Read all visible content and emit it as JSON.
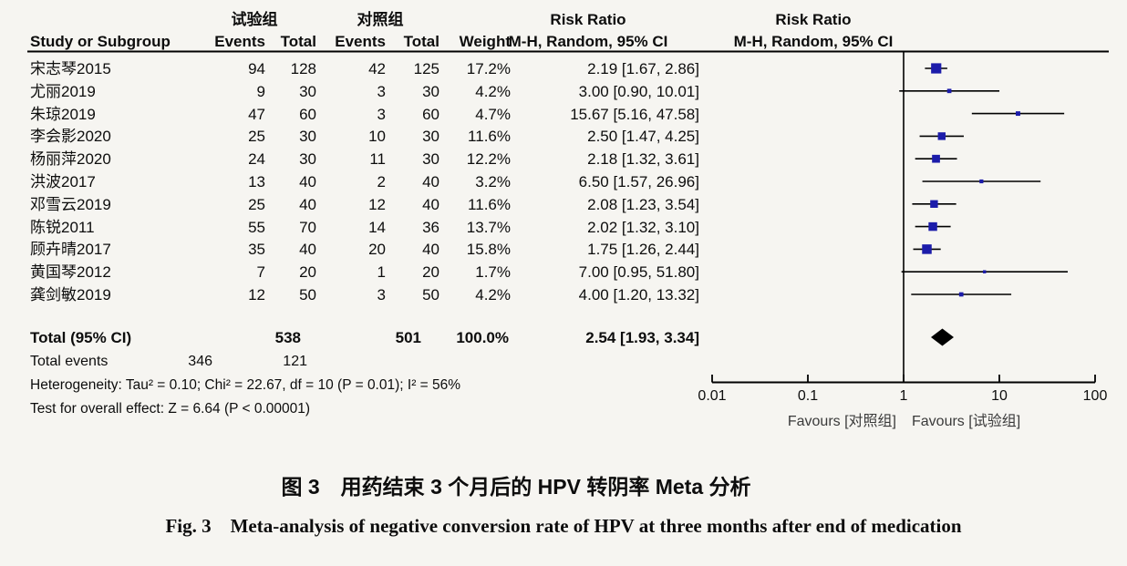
{
  "chart_data": {
    "type": "forest",
    "effect_measure": "Risk Ratio",
    "method": "M-H, Random, 95% CI",
    "x_scale": "log10",
    "x_ticks": [
      0.01,
      0.1,
      1,
      10,
      100
    ],
    "null_line": 1,
    "group_labels": {
      "experimental": "试验组",
      "control": "对照组"
    },
    "column_headers": {
      "study": "Study or Subgroup",
      "events": "Events",
      "total": "Total",
      "weight": "Weight"
    },
    "studies": [
      {
        "study": "宋志琴2015",
        "events_exp": "94",
        "total_exp": "128",
        "events_ctl": "42",
        "total_ctl": "125",
        "weight": "17.2%",
        "rr": 2.19,
        "ci_low": 1.67,
        "ci_high": 2.86,
        "ci_text": "2.19 [1.67, 2.86]"
      },
      {
        "study": "尤丽2019",
        "events_exp": "9",
        "total_exp": "30",
        "events_ctl": "3",
        "total_ctl": "30",
        "weight": "4.2%",
        "rr": 3.0,
        "ci_low": 0.9,
        "ci_high": 10.01,
        "ci_text": "3.00 [0.90, 10.01]"
      },
      {
        "study": "朱琼2019",
        "events_exp": "47",
        "total_exp": "60",
        "events_ctl": "3",
        "total_ctl": "60",
        "weight": "4.7%",
        "rr": 15.67,
        "ci_low": 5.16,
        "ci_high": 47.58,
        "ci_text": "15.67 [5.16, 47.58]"
      },
      {
        "study": "李会影2020",
        "events_exp": "25",
        "total_exp": "30",
        "events_ctl": "10",
        "total_ctl": "30",
        "weight": "11.6%",
        "rr": 2.5,
        "ci_low": 1.47,
        "ci_high": 4.25,
        "ci_text": "2.50 [1.47, 4.25]"
      },
      {
        "study": "杨丽萍2020",
        "events_exp": "24",
        "total_exp": "30",
        "events_ctl": "11",
        "total_ctl": "30",
        "weight": "12.2%",
        "rr": 2.18,
        "ci_low": 1.32,
        "ci_high": 3.61,
        "ci_text": "2.18 [1.32, 3.61]"
      },
      {
        "study": "洪波2017",
        "events_exp": "13",
        "total_exp": "40",
        "events_ctl": "2",
        "total_ctl": "40",
        "weight": "3.2%",
        "rr": 6.5,
        "ci_low": 1.57,
        "ci_high": 26.96,
        "ci_text": "6.50 [1.57, 26.96]"
      },
      {
        "study": "邓雪云2019",
        "events_exp": "25",
        "total_exp": "40",
        "events_ctl": "12",
        "total_ctl": "40",
        "weight": "11.6%",
        "rr": 2.08,
        "ci_low": 1.23,
        "ci_high": 3.54,
        "ci_text": "2.08 [1.23, 3.54]"
      },
      {
        "study": "陈锐2011",
        "events_exp": "55",
        "total_exp": "70",
        "events_ctl": "14",
        "total_ctl": "36",
        "weight": "13.7%",
        "rr": 2.02,
        "ci_low": 1.32,
        "ci_high": 3.1,
        "ci_text": "2.02 [1.32, 3.10]"
      },
      {
        "study": "顾卉晴2017",
        "events_exp": "35",
        "total_exp": "40",
        "events_ctl": "20",
        "total_ctl": "40",
        "weight": "15.8%",
        "rr": 1.75,
        "ci_low": 1.26,
        "ci_high": 2.44,
        "ci_text": "1.75 [1.26, 2.44]"
      },
      {
        "study": "黄国琴2012",
        "events_exp": "7",
        "total_exp": "20",
        "events_ctl": "1",
        "total_ctl": "20",
        "weight": "1.7%",
        "rr": 7.0,
        "ci_low": 0.95,
        "ci_high": 51.8,
        "ci_text": "7.00 [0.95, 51.80]"
      },
      {
        "study": "龚剑敏2019",
        "events_exp": "12",
        "total_exp": "50",
        "events_ctl": "3",
        "total_ctl": "50",
        "weight": "4.2%",
        "rr": 4.0,
        "ci_low": 1.2,
        "ci_high": 13.32,
        "ci_text": "4.00 [1.20, 13.32]"
      }
    ],
    "total": {
      "label": "Total (95% CI)",
      "total_exp": "538",
      "total_ctl": "501",
      "weight": "100.0%",
      "rr": 2.54,
      "ci_low": 1.93,
      "ci_high": 3.34,
      "ci_text": "2.54 [1.93, 3.34]"
    },
    "total_events": {
      "label": "Total events",
      "events_exp": "346",
      "events_ctl": "121"
    },
    "heterogeneity_text": "Heterogeneity: Tau² = 0.10; Chi² = 22.67, df = 10 (P = 0.01); I² = 56%",
    "overall_effect_text": "Test for overall effect: Z = 6.64 (P < 0.00001)",
    "favours": {
      "left": "Favours [对照组]",
      "right": "Favours [试验组]"
    },
    "colors": {
      "marker": "#1c1caa",
      "diamond": "#000000",
      "line": "#000000",
      "background": "#f6f5f1"
    }
  },
  "caption": {
    "zh": "图 3　用药结束 3 个月后的 HPV 转阴率 Meta 分析",
    "en": "Fig. 3　Meta-analysis of negative conversion rate of HPV at three months after end of medication"
  }
}
